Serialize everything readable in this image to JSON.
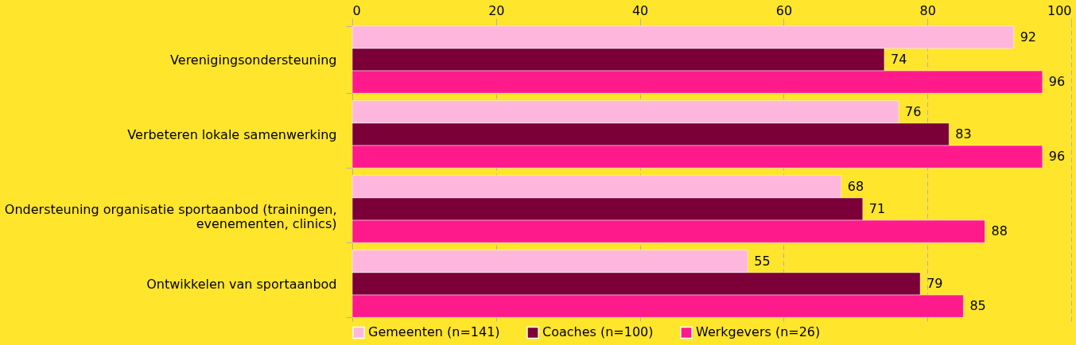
{
  "chart_data": {
    "type": "bar",
    "orientation": "horizontal",
    "categories": [
      "Verenigingsondersteuning",
      "Verbeteren lokale samenwerking",
      "Ondersteuning organisatie sportaanbod (trainingen, evenementen, clinics)",
      "Ontwikkelen van sportaanbod"
    ],
    "series": [
      {
        "name": "Gemeenten (n=141)",
        "color": "#ffb6dc",
        "values": [
          92,
          76,
          68,
          55
        ]
      },
      {
        "name": "Coaches (n=100)",
        "color": "#7b0038",
        "values": [
          74,
          83,
          71,
          79
        ]
      },
      {
        "name": "Werkgevers (n=26)",
        "color": "#ff1a8c",
        "values": [
          96,
          96,
          88,
          85
        ]
      }
    ],
    "xlim": [
      0,
      100
    ],
    "xticks": [
      0,
      20,
      40,
      60,
      80,
      100
    ],
    "grid": "x",
    "legend": "bottom",
    "data_labels": true
  }
}
